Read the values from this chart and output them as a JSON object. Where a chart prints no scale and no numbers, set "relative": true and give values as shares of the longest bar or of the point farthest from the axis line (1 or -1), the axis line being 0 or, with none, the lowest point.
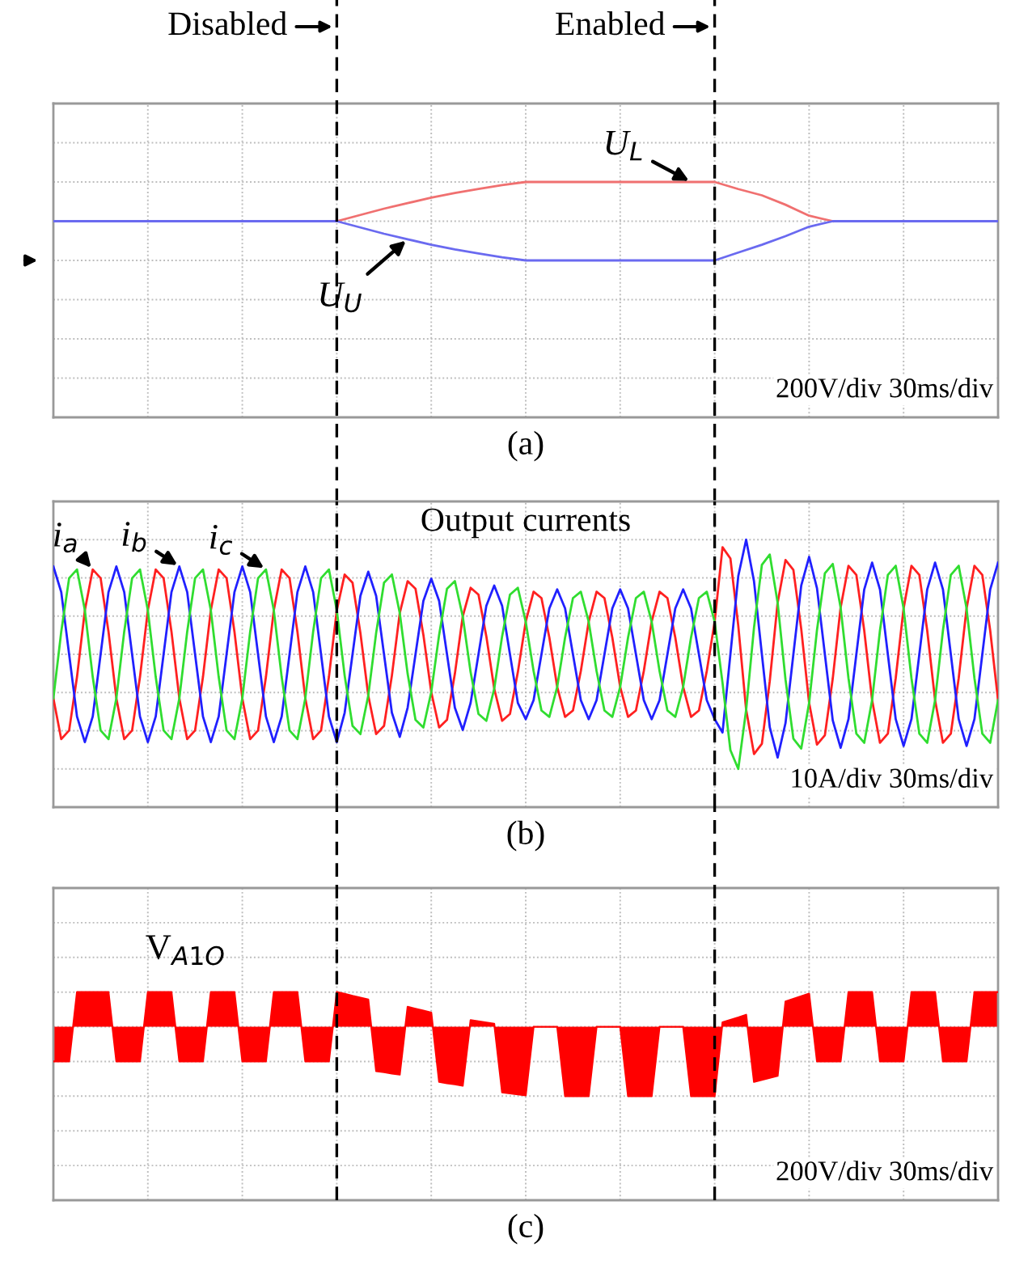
{
  "chart_data": [
    {
      "type": "line",
      "relative": true,
      "xlabel": "(a)",
      "tick_labels": false,
      "grid": true,
      "categories": [
        null,
        null,
        null,
        null,
        null,
        null,
        null,
        null,
        null,
        null,
        null,
        null,
        null,
        null,
        null,
        null,
        null,
        null,
        null,
        null,
        null,
        null,
        null,
        null,
        null,
        null,
        null,
        null,
        null,
        null,
        null,
        null,
        null,
        null,
        null,
        null,
        null,
        null,
        null,
        null,
        null
      ],
      "series": [
        {
          "name": "U$_{L}$",
          "color": "#f07070",
          "values": [
            null,
            null,
            null,
            null,
            null,
            null,
            null,
            null,
            null,
            null,
            null,
            null,
            0.5,
            0.58,
            0.66,
            0.73,
            0.8,
            0.86,
            0.91,
            0.96,
            1,
            1,
            1,
            1,
            1,
            1,
            1,
            1,
            1,
            0.91,
            0.83,
            0.71,
            0.57,
            0.5,
            null,
            null,
            null,
            null,
            null,
            null,
            null
          ]
        },
        {
          "name": "U$_{U}$",
          "color": "#6a6af0",
          "values": [
            0.5,
            0.5,
            0.5,
            0.5,
            0.5,
            0.5,
            0.5,
            0.5,
            0.5,
            0.5,
            0.5,
            0.5,
            0.5,
            0.42,
            0.34,
            0.27,
            0.2,
            0.14,
            0.09,
            0.04,
            0,
            0,
            0,
            0,
            0,
            0,
            0,
            0,
            0,
            0.1,
            0.2,
            0.31,
            0.43,
            0.5,
            0.5,
            0.5,
            0.5,
            0.5,
            0.5,
            0.5,
            0.5
          ]
        }
      ],
      "annotations": [
        "Disabled",
        "Enabled",
        "200V/div 30ms/div"
      ]
    },
    {
      "type": "line",
      "relative": true,
      "title": "Output currents",
      "xlabel": "(b)",
      "tick_labels": false,
      "grid": true,
      "categories": [
        null,
        null,
        null,
        null,
        null,
        null,
        null,
        null,
        null,
        null,
        null,
        null,
        null,
        null,
        null,
        null,
        null,
        null,
        null,
        null,
        null,
        null,
        null,
        null,
        null,
        null,
        null,
        null,
        null,
        null,
        null,
        null,
        null,
        null,
        null,
        null,
        null,
        null,
        null,
        null,
        null,
        null,
        null,
        null,
        null,
        null,
        null,
        null,
        null,
        null,
        null,
        null,
        null,
        null,
        null,
        null,
        null,
        null,
        null,
        null,
        null,
        null,
        null,
        null,
        null,
        null,
        null,
        null,
        null,
        null,
        null,
        null,
        null,
        null,
        null,
        null,
        null,
        null,
        null,
        null,
        null,
        null,
        null,
        null,
        null,
        null,
        null,
        null,
        null,
        null,
        null,
        null,
        null,
        null,
        null,
        null,
        null,
        null,
        null,
        null,
        null,
        null,
        null,
        null,
        null,
        null,
        null,
        null,
        null,
        null,
        null,
        null,
        null,
        null,
        null,
        null,
        null,
        null,
        null,
        null,
        null
      ],
      "series": [
        {
          "name": "i$_{a}$",
          "color": "#ff2020",
          "values": [
            0.308,
            0.13,
            0.168,
            0.401,
            0.692,
            0.87,
            0.832,
            0.599,
            0.308,
            0.13,
            0.168,
            0.401,
            0.692,
            0.87,
            0.832,
            0.599,
            0.308,
            0.13,
            0.168,
            0.401,
            0.692,
            0.87,
            0.832,
            0.599,
            0.308,
            0.13,
            0.168,
            0.401,
            0.692,
            0.87,
            0.832,
            0.599,
            0.308,
            0.13,
            0.168,
            0.401,
            0.692,
            0.848,
            0.812,
            0.593,
            0.32,
            0.152,
            0.188,
            0.407,
            0.68,
            0.819,
            0.786,
            0.585,
            0.335,
            0.181,
            0.214,
            0.415,
            0.665,
            0.79,
            0.76,
            0.578,
            0.35,
            0.21,
            0.24,
            0.422,
            0.642,
            0.773,
            0.745,
            0.573,
            0.358,
            0.227,
            0.255,
            0.427,
            0.642,
            0.773,
            0.745,
            0.573,
            0.358,
            0.227,
            0.255,
            0.427,
            0.642,
            0.773,
            0.745,
            0.573,
            0.358,
            0.227,
            0.255,
            0.427,
            0.642,
            0.967,
            0.918,
            0.625,
            0.258,
            0.065,
            0.11,
            0.383,
            0.725,
            0.911,
            0.868,
            0.61,
            0.288,
            0.106,
            0.147,
            0.394,
            0.704,
            0.886,
            0.846,
            0.604,
            0.3,
            0.114,
            0.154,
            0.396,
            0.7,
            0.886,
            0.846,
            0.604,
            0.3,
            0.114,
            0.154,
            0.396,
            0.7,
            0.886,
            0.846,
            0.604,
            0.3
          ]
        },
        {
          "name": "i$_{b}$",
          "color": "#2020ff",
          "values": [
            0.883,
            0.771,
            0.5,
            0.229,
            0.117,
            0.229,
            0.5,
            0.771,
            0.883,
            0.771,
            0.5,
            0.229,
            0.117,
            0.229,
            0.5,
            0.771,
            0.883,
            0.771,
            0.5,
            0.229,
            0.117,
            0.229,
            0.5,
            0.771,
            0.883,
            0.771,
            0.5,
            0.229,
            0.117,
            0.229,
            0.5,
            0.771,
            0.883,
            0.771,
            0.5,
            0.229,
            0.117,
            0.245,
            0.5,
            0.755,
            0.86,
            0.755,
            0.5,
            0.245,
            0.14,
            0.267,
            0.5,
            0.733,
            0.83,
            0.733,
            0.5,
            0.267,
            0.17,
            0.288,
            0.5,
            0.712,
            0.8,
            0.712,
            0.5,
            0.288,
            0.217,
            0.3,
            0.5,
            0.7,
            0.783,
            0.7,
            0.5,
            0.3,
            0.217,
            0.3,
            0.5,
            0.7,
            0.783,
            0.7,
            0.5,
            0.3,
            0.217,
            0.3,
            0.5,
            0.7,
            0.783,
            0.7,
            0.5,
            0.3,
            0.217,
            0.159,
            0.5,
            0.841,
            1,
            0.818,
            0.5,
            0.182,
            0.05,
            0.2,
            0.5,
            0.8,
            0.925,
            0.788,
            0.5,
            0.212,
            0.092,
            0.217,
            0.5,
            0.783,
            0.9,
            0.783,
            0.5,
            0.217,
            0.1,
            0.217,
            0.5,
            0.783,
            0.9,
            0.783,
            0.5,
            0.217,
            0.1,
            0.217,
            0.5,
            0.783,
            0.9
          ]
        },
        {
          "name": "i$_{c}$",
          "color": "#30dd30",
          "values": [
            0.308,
            0.599,
            0.832,
            0.87,
            0.692,
            0.401,
            0.168,
            0.13,
            0.308,
            0.599,
            0.832,
            0.87,
            0.692,
            0.401,
            0.168,
            0.13,
            0.308,
            0.599,
            0.832,
            0.87,
            0.692,
            0.401,
            0.168,
            0.13,
            0.308,
            0.599,
            0.832,
            0.87,
            0.692,
            0.401,
            0.168,
            0.13,
            0.308,
            0.599,
            0.832,
            0.87,
            0.692,
            0.407,
            0.188,
            0.152,
            0.32,
            0.593,
            0.812,
            0.848,
            0.68,
            0.415,
            0.214,
            0.181,
            0.335,
            0.585,
            0.786,
            0.819,
            0.665,
            0.422,
            0.24,
            0.21,
            0.35,
            0.578,
            0.76,
            0.79,
            0.642,
            0.427,
            0.255,
            0.227,
            0.358,
            0.573,
            0.745,
            0.773,
            0.642,
            0.427,
            0.255,
            0.227,
            0.358,
            0.573,
            0.745,
            0.773,
            0.642,
            0.427,
            0.255,
            0.227,
            0.358,
            0.573,
            0.745,
            0.773,
            0.642,
            0.375,
            0.082,
            0,
            0.258,
            0.617,
            0.89,
            0.935,
            0.725,
            0.39,
            0.132,
            0.089,
            0.288,
            0.606,
            0.853,
            0.894,
            0.704,
            0.396,
            0.154,
            0.114,
            0.3,
            0.604,
            0.846,
            0.886,
            0.7,
            0.396,
            0.154,
            0.114,
            0.3,
            0.604,
            0.846,
            0.886,
            0.7,
            0.396,
            0.154,
            0.114,
            0.3
          ]
        }
      ],
      "annotations": [
        "10A/div 30ms/div"
      ]
    },
    {
      "type": "area",
      "relative": true,
      "xlabel": "(c)",
      "tick_labels": false,
      "grid": true,
      "categories": [
        null,
        null,
        null,
        null,
        null,
        null,
        null,
        null,
        null,
        null,
        null,
        null,
        null,
        null,
        null,
        null,
        null,
        null,
        null,
        null,
        null,
        null,
        null,
        null,
        null,
        null,
        null,
        null,
        null,
        null,
        null,
        null,
        null,
        null,
        null,
        null,
        null,
        null,
        null,
        null,
        null,
        null,
        null,
        null,
        null,
        null,
        null,
        null,
        null,
        null,
        null,
        null,
        null,
        null,
        null,
        null,
        null,
        null,
        null,
        null,
        null,
        null,
        null,
        null,
        null,
        null,
        null,
        null,
        null,
        null,
        null,
        null,
        null,
        null,
        null,
        null,
        null,
        null,
        null,
        null,
        null,
        null,
        null,
        null,
        null,
        null,
        null,
        null,
        null,
        null,
        null,
        null,
        null,
        null,
        null,
        null,
        null,
        null,
        null,
        null,
        null,
        null,
        null,
        null,
        null,
        null,
        null,
        null,
        null,
        null,
        null,
        null,
        null,
        null,
        null,
        null,
        null,
        null,
        null,
        null,
        null
      ],
      "series": [
        {
          "name": "V$_{A1O}$",
          "color": "#ff0000",
          "values": [
            -0.5,
            -0.5,
            -0.5,
            0.5,
            0.5,
            0.5,
            0.5,
            0.5,
            -0.5,
            -0.5,
            -0.5,
            -0.5,
            0.5,
            0.5,
            0.5,
            0.5,
            -0.5,
            -0.5,
            -0.5,
            -0.5,
            0.5,
            0.5,
            0.5,
            0.5,
            -0.5,
            -0.5,
            -0.5,
            -0.5,
            0.5,
            0.5,
            0.5,
            0.5,
            -0.5,
            -0.5,
            -0.5,
            -0.5,
            0.5,
            0.475,
            0.445,
            0.418,
            0.393,
            -0.638,
            -0.655,
            -0.673,
            -0.69,
            0.288,
            0.26,
            0.233,
            0.205,
            -0.793,
            -0.813,
            -0.83,
            -0.85,
            0.095,
            0.078,
            0.06,
            0.043,
            -0.945,
            -0.96,
            -0.975,
            -0.988,
            0,
            0,
            0,
            0,
            -1,
            -1,
            -1,
            -1,
            0,
            0,
            0,
            0,
            -1,
            -1,
            -1,
            -1,
            0,
            0,
            0,
            0,
            -1,
            -1,
            -1,
            -1,
            0.063,
            0.1,
            0.135,
            0.173,
            -0.795,
            -0.765,
            -0.735,
            -0.708,
            0.365,
            0.403,
            0.44,
            0.478,
            -0.5,
            -0.5,
            -0.5,
            -0.5,
            0.5,
            0.5,
            0.5,
            0.5,
            -0.5,
            -0.5,
            -0.5,
            -0.5,
            0.5,
            0.5,
            0.5,
            0.5,
            -0.5,
            -0.5,
            -0.5,
            -0.5,
            0.5,
            0.5,
            0.5,
            0.5
          ]
        }
      ],
      "annotations": [
        "200V/div 30ms/div"
      ]
    }
  ]
}
